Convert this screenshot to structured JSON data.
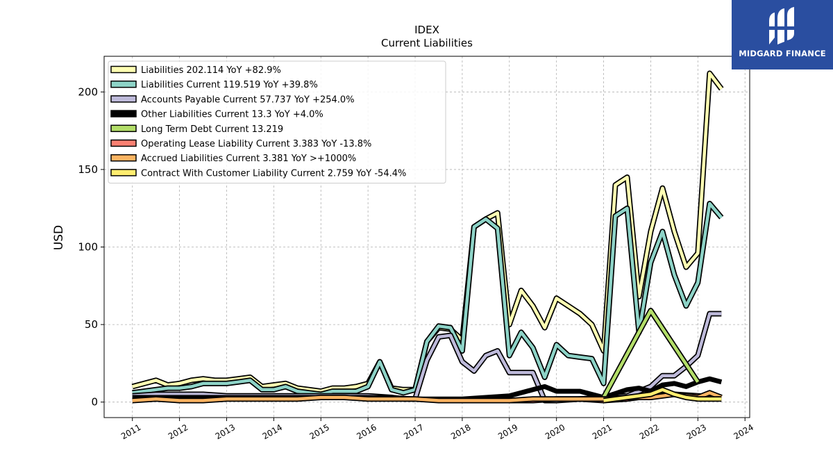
{
  "brand": {
    "name": "MIDGARD FINANCE",
    "color": "#2a4ea0"
  },
  "chart_data": {
    "type": "line",
    "title": "IDEX",
    "subtitle": "Current  Liabilities",
    "xlabel": "",
    "ylabel": "USD",
    "xlim": [
      2010.4,
      2024.1
    ],
    "ylim": [
      -10,
      223
    ],
    "yticks": [
      0,
      50,
      100,
      150,
      200
    ],
    "xticks": [
      "2011",
      "2012",
      "2013",
      "2014",
      "2015",
      "2016",
      "2017",
      "2018",
      "2019",
      "2020",
      "2021",
      "2022",
      "2023",
      "2024"
    ],
    "grid": true,
    "legend_position": "top-left",
    "series": [
      {
        "name": "Liabilities",
        "legend": "Liabilities  202.114 YoY +82.9%",
        "color": "#ffffb3",
        "x": [
          2011.0,
          2011.25,
          2011.5,
          2011.75,
          2012.0,
          2012.25,
          2012.5,
          2012.75,
          2013.0,
          2013.25,
          2013.5,
          2013.75,
          2014.0,
          2014.25,
          2014.5,
          2014.75,
          2015.0,
          2015.25,
          2015.5,
          2015.75,
          2016.0,
          2016.25,
          2016.5,
          2016.75,
          2017.0,
          2017.25,
          2017.5,
          2017.75,
          2018.0,
          2018.25,
          2018.5,
          2018.75,
          2019.0,
          2019.25,
          2019.5,
          2019.75,
          2020.0,
          2020.25,
          2020.5,
          2020.75,
          2021.0,
          2021.25,
          2021.5,
          2021.75,
          2022.0,
          2022.25,
          2022.5,
          2022.75,
          2023.0,
          2023.25,
          2023.5
        ],
        "y": [
          10,
          12,
          14,
          11,
          12,
          14,
          15,
          14,
          14,
          15,
          16,
          10,
          11,
          12,
          9,
          8,
          7,
          9,
          9,
          10,
          12,
          26,
          9,
          8,
          8,
          39,
          48,
          47,
          40,
          113,
          118,
          122,
          50,
          72,
          62,
          48,
          67,
          62,
          57,
          50,
          33,
          140,
          145,
          68,
          110,
          138,
          110,
          87,
          96,
          212,
          202
        ]
      },
      {
        "name": "Liabilities Current",
        "legend": "Liabilities Current  119.519 YoY +39.8%",
        "color": "#8dd3c7",
        "x": [
          2011.0,
          2011.25,
          2011.5,
          2011.75,
          2012.0,
          2012.25,
          2012.5,
          2012.75,
          2013.0,
          2013.25,
          2013.5,
          2013.75,
          2014.0,
          2014.25,
          2014.5,
          2014.75,
          2015.0,
          2015.25,
          2015.5,
          2015.75,
          2016.0,
          2016.25,
          2016.5,
          2016.75,
          2017.0,
          2017.25,
          2017.5,
          2017.75,
          2018.0,
          2018.25,
          2018.5,
          2018.75,
          2019.0,
          2019.25,
          2019.5,
          2019.75,
          2020.0,
          2020.25,
          2020.5,
          2020.75,
          2021.0,
          2021.25,
          2021.5,
          2021.75,
          2022.0,
          2022.25,
          2022.5,
          2022.75,
          2023.0,
          2023.25,
          2023.5
        ],
        "y": [
          6,
          7,
          8,
          9,
          9,
          10,
          12,
          12,
          12,
          13,
          14,
          8,
          8,
          10,
          7,
          6,
          5,
          7,
          7,
          7,
          10,
          26,
          8,
          6,
          8,
          39,
          49,
          48,
          33,
          113,
          118,
          112,
          30,
          45,
          35,
          16,
          37,
          30,
          29,
          28,
          12,
          120,
          125,
          45,
          90,
          110,
          82,
          62,
          77,
          128,
          119
        ]
      },
      {
        "name": "Accounts Payable Current",
        "legend": "Accounts Payable Current  57.737 YoY +254.0%",
        "color": "#bebada",
        "x": [
          2011.0,
          2011.5,
          2012.0,
          2012.5,
          2013.0,
          2013.5,
          2014.0,
          2014.5,
          2015.0,
          2015.5,
          2016.0,
          2016.5,
          2016.75,
          2017.0,
          2017.25,
          2017.5,
          2017.75,
          2018.0,
          2018.25,
          2018.5,
          2018.75,
          2019.0,
          2019.25,
          2019.5,
          2019.75,
          2020.0,
          2020.5,
          2021.0,
          2021.5,
          2022.0,
          2022.25,
          2022.5,
          2022.75,
          2023.0,
          2023.25,
          2023.5
        ],
        "y": [
          4,
          5,
          5,
          5,
          4,
          4,
          4,
          4,
          4,
          4,
          4,
          3,
          2,
          2,
          27,
          42,
          43,
          26,
          20,
          30,
          33,
          19,
          19,
          19,
          1,
          1,
          2,
          3,
          4,
          10,
          17,
          17,
          23,
          30,
          57,
          57
        ]
      },
      {
        "name": "Other Liabilities Current",
        "legend": "Other Liabilities Current  13.3 YoY +4.0%",
        "color": "#000000",
        "x": [
          2011.0,
          2011.5,
          2012.0,
          2012.5,
          2013.0,
          2013.5,
          2014.0,
          2014.5,
          2015.0,
          2015.5,
          2016.0,
          2016.5,
          2017.0,
          2017.5,
          2018.0,
          2018.5,
          2019.0,
          2019.25,
          2019.5,
          2019.75,
          2020.0,
          2020.5,
          2021.0,
          2021.5,
          2021.75,
          2022.0,
          2022.25,
          2022.5,
          2022.75,
          2023.0,
          2023.25,
          2023.5
        ],
        "y": [
          3,
          3,
          3,
          3,
          3,
          3,
          3,
          3,
          3,
          3,
          3,
          3,
          2,
          2,
          2,
          3,
          4,
          6,
          8,
          10,
          7,
          7,
          3,
          8,
          9,
          7,
          11,
          12,
          10,
          13,
          15,
          13
        ]
      },
      {
        "name": "Long Term Debt Current",
        "legend": "Long Term Debt Current  13.219",
        "color": "#b3de69",
        "x": [
          2021.0,
          2022.0,
          2023.0
        ],
        "y": [
          3,
          59,
          13
        ]
      },
      {
        "name": "Operating Lease Liability Current",
        "legend": "Operating Lease Liability Current  3.383 YoY -13.8%",
        "color": "#fb8072",
        "x": [
          2019.0,
          2019.5,
          2020.0,
          2020.5,
          2021.0,
          2021.5,
          2022.0,
          2022.5,
          2023.0,
          2023.5
        ],
        "y": [
          1,
          1,
          2,
          2,
          1,
          2,
          4,
          5,
          4,
          3
        ]
      },
      {
        "name": "Accrued Liabilities Current",
        "legend": "Accrued Liabilities Current  3.381 YoY >+1000%",
        "color": "#fdb462",
        "x": [
          2011.0,
          2011.5,
          2012.0,
          2012.5,
          2013.0,
          2013.5,
          2014.0,
          2014.5,
          2015.0,
          2015.5,
          2016.0,
          2016.5,
          2017.0,
          2017.5,
          2018.0,
          2018.5,
          2019.0,
          2019.5,
          2020.0,
          2020.5,
          2021.0,
          2021.5,
          2022.0,
          2022.25,
          2022.5,
          2022.75,
          2023.0,
          2023.25,
          2023.5
        ],
        "y": [
          1,
          2,
          1,
          1,
          2,
          2,
          2,
          2,
          3,
          3,
          2,
          2,
          2,
          1,
          1,
          1,
          1,
          2,
          2,
          2,
          2,
          3,
          3,
          4,
          5,
          4,
          3,
          6,
          3
        ]
      },
      {
        "name": "Contract With Customer Liability Current",
        "legend": "Contract With Customer Liability Current  2.759 YoY -54.4%",
        "color": "#ffed6f",
        "x": [
          2021.0,
          2021.5,
          2022.0,
          2022.25,
          2022.5,
          2022.75,
          2023.0,
          2023.25,
          2023.5
        ],
        "y": [
          1,
          3,
          5,
          8,
          5,
          3,
          2,
          2,
          2
        ]
      }
    ]
  }
}
